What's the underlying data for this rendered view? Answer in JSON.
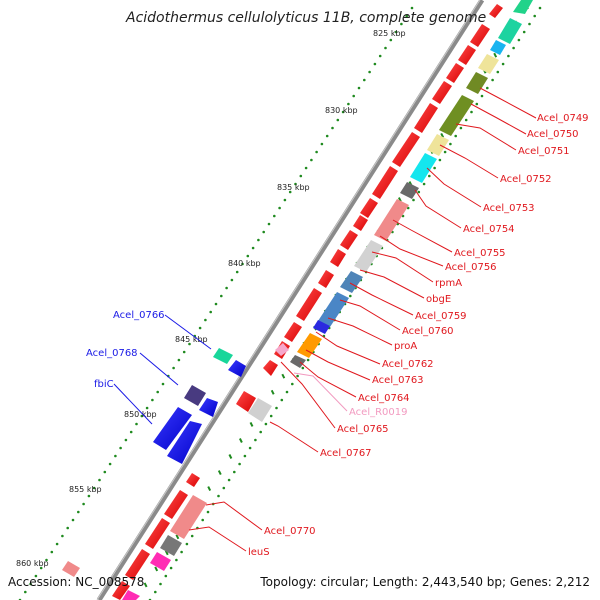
{
  "title": "Acidothermus cellulolyticus 11B, complete genome",
  "footer": {
    "accession": "Accession: NC_008578",
    "topology": "Topology: circular; Length: 2,443,540 bp; Genes: 2,212"
  },
  "ticks": [
    "825 kbp",
    "830 kbp",
    "835 kbp",
    "840 kbp",
    "845 kbp",
    "850 kbp",
    "855 kbp",
    "860 kbp"
  ],
  "labels": [
    {
      "text": "Acel_0749",
      "color": "#e0181e"
    },
    {
      "text": "Acel_0750",
      "color": "#e0181e"
    },
    {
      "text": "Acel_0751",
      "color": "#e0181e"
    },
    {
      "text": "Acel_0752",
      "color": "#e0181e"
    },
    {
      "text": "Acel_0753",
      "color": "#e0181e"
    },
    {
      "text": "Acel_0754",
      "color": "#e0181e"
    },
    {
      "text": "Acel_0755",
      "color": "#e0181e"
    },
    {
      "text": "Acel_0756",
      "color": "#e0181e"
    },
    {
      "text": "rpmA",
      "color": "#e0181e"
    },
    {
      "text": "obgE",
      "color": "#e0181e"
    },
    {
      "text": "Acel_0759",
      "color": "#e0181e"
    },
    {
      "text": "Acel_0760",
      "color": "#e0181e"
    },
    {
      "text": "proA",
      "color": "#e0181e"
    },
    {
      "text": "Acel_0762",
      "color": "#e0181e"
    },
    {
      "text": "Acel_0763",
      "color": "#e0181e"
    },
    {
      "text": "Acel_0764",
      "color": "#e0181e"
    },
    {
      "text": "Acel_R0019",
      "color": "#f29ac0"
    },
    {
      "text": "Acel_0765",
      "color": "#e0181e"
    },
    {
      "text": "Acel_0767",
      "color": "#e0181e"
    },
    {
      "text": "Acel_0770",
      "color": "#e0181e"
    },
    {
      "text": "leuS",
      "color": "#e0181e"
    },
    {
      "text": "Acel_0766",
      "color": "#1a1ae6"
    },
    {
      "text": "Acel_0768",
      "color": "#1a1ae6"
    },
    {
      "text": "fbiC",
      "color": "#1a1ae6"
    }
  ],
  "colors": {
    "forward_cds": "#ff0000",
    "reverse_cds": "#0000ee",
    "backbone": "#7a7a7a",
    "gc_dots": "#1f8a1f"
  }
}
